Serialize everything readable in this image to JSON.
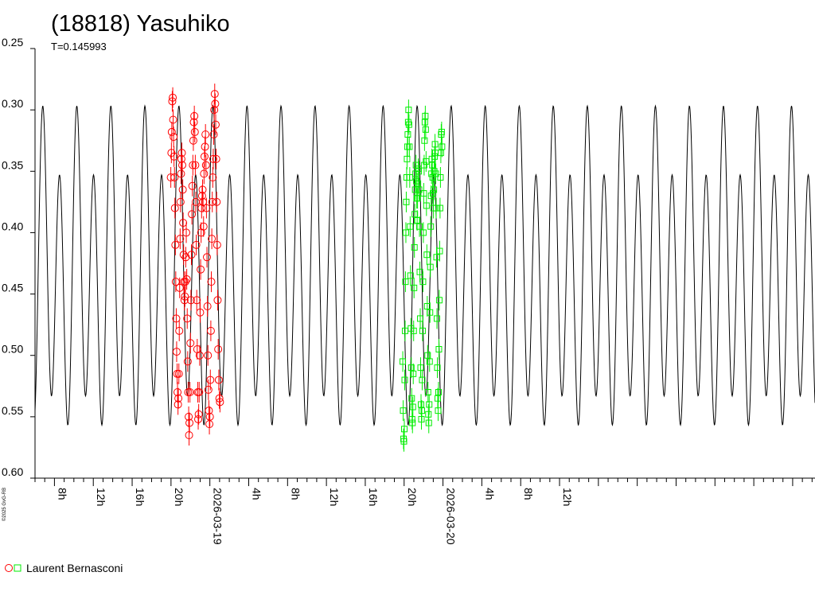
{
  "chart_data": {
    "type": "scatter",
    "title": "(18818) Yasuhiko",
    "subtitle": "T=0.145993",
    "credit": "©2025 GvG-RB",
    "y_axis": {
      "reversed": true,
      "range": [
        0.25,
        0.6
      ],
      "ticks": [
        "0.25",
        "0.30",
        "0.35",
        "0.40",
        "0.45",
        "0.50",
        "0.55",
        "0.60"
      ]
    },
    "x_axis": {
      "unit": "hours",
      "range": [
        6.0,
        86.3
      ],
      "ticks": [
        {
          "h": 8,
          "label": "8h"
        },
        {
          "h": 12,
          "label": "12h"
        },
        {
          "h": 16,
          "label": "16h"
        },
        {
          "h": 20,
          "label": "20h"
        },
        {
          "h": 24,
          "label": "2026-03-19"
        },
        {
          "h": 28,
          "label": "4h"
        },
        {
          "h": 32,
          "label": "8h"
        },
        {
          "h": 36,
          "label": "12h"
        },
        {
          "h": 40,
          "label": "16h"
        },
        {
          "h": 44,
          "label": "20h"
        },
        {
          "h": 48,
          "label": "2026-03-20"
        },
        {
          "h": 52,
          "label": "4h"
        },
        {
          "h": 56,
          "label": "8h"
        },
        {
          "h": 60,
          "label": "12h"
        }
      ]
    },
    "model_curve": {
      "period_days": 0.145993,
      "period_hours": 3.50383,
      "mean": 0.4345,
      "harmonics": [
        {
          "n": 1,
          "a": -0.0305,
          "phi": 0.0
        },
        {
          "n": 2,
          "a": -0.1095,
          "phi": 0.8
        }
      ],
      "color": "#000000"
    },
    "series": [
      {
        "name": "Laurent Bernasconi",
        "session": 1,
        "color": "#ff0000",
        "marker": "circle",
        "points": [
          [
            19.98,
            0.355
          ],
          [
            20.04,
            0.335
          ],
          [
            20.08,
            0.318
          ],
          [
            20.13,
            0.293
          ],
          [
            20.18,
            0.29
          ],
          [
            20.22,
            0.308
          ],
          [
            20.27,
            0.322
          ],
          [
            20.31,
            0.338
          ],
          [
            20.36,
            0.355
          ],
          [
            20.4,
            0.38
          ],
          [
            20.45,
            0.41
          ],
          [
            20.49,
            0.44
          ],
          [
            20.54,
            0.47
          ],
          [
            20.58,
            0.497
          ],
          [
            20.63,
            0.515
          ],
          [
            20.67,
            0.53
          ],
          [
            20.72,
            0.54
          ],
          [
            20.76,
            0.535
          ],
          [
            20.81,
            0.515
          ],
          [
            20.85,
            0.48
          ],
          [
            20.89,
            0.445
          ],
          [
            20.94,
            0.405
          ],
          [
            20.98,
            0.375
          ],
          [
            21.03,
            0.352
          ],
          [
            21.07,
            0.34
          ],
          [
            21.12,
            0.335
          ],
          [
            21.16,
            0.345
          ],
          [
            21.21,
            0.365
          ],
          [
            21.25,
            0.392
          ],
          [
            21.3,
            0.418
          ],
          [
            21.34,
            0.44
          ],
          [
            21.39,
            0.455
          ],
          [
            21.43,
            0.452
          ],
          [
            21.48,
            0.44
          ],
          [
            21.52,
            0.42
          ],
          [
            21.57,
            0.4
          ],
          [
            21.62,
            0.438
          ],
          [
            21.67,
            0.47
          ],
          [
            21.72,
            0.505
          ],
          [
            21.77,
            0.53
          ],
          [
            21.82,
            0.55
          ],
          [
            21.86,
            0.565
          ],
          [
            21.9,
            0.555
          ],
          [
            21.95,
            0.53
          ],
          [
            22.0,
            0.49
          ],
          [
            22.05,
            0.455
          ],
          [
            22.1,
            0.418
          ],
          [
            22.15,
            0.385
          ],
          [
            22.2,
            0.362
          ],
          [
            22.25,
            0.345
          ],
          [
            22.3,
            0.325
          ],
          [
            22.35,
            0.31
          ],
          [
            22.4,
            0.305
          ],
          [
            22.45,
            0.318
          ],
          [
            22.5,
            0.345
          ],
          [
            22.55,
            0.375
          ],
          [
            22.6,
            0.41
          ],
          [
            22.65,
            0.455
          ],
          [
            22.7,
            0.495
          ],
          [
            22.75,
            0.53
          ],
          [
            22.8,
            0.552
          ],
          [
            22.85,
            0.548
          ],
          [
            22.9,
            0.53
          ],
          [
            22.95,
            0.5
          ],
          [
            23.0,
            0.465
          ],
          [
            23.05,
            0.43
          ],
          [
            23.1,
            0.4
          ],
          [
            23.15,
            0.38
          ],
          [
            23.2,
            0.37
          ],
          [
            23.25,
            0.365
          ],
          [
            23.3,
            0.375
          ],
          [
            23.35,
            0.395
          ],
          [
            23.4,
            0.352
          ],
          [
            23.45,
            0.338
          ],
          [
            23.5,
            0.33
          ],
          [
            23.55,
            0.32
          ],
          [
            23.6,
            0.345
          ],
          [
            23.65,
            0.38
          ],
          [
            23.7,
            0.42
          ],
          [
            23.75,
            0.46
          ],
          [
            23.8,
            0.5
          ],
          [
            23.85,
            0.528
          ],
          [
            23.9,
            0.545
          ],
          [
            23.95,
            0.556
          ],
          [
            24.0,
            0.55
          ],
          [
            24.05,
            0.52
          ],
          [
            24.1,
            0.48
          ],
          [
            24.15,
            0.44
          ],
          [
            24.2,
            0.405
          ],
          [
            24.25,
            0.375
          ],
          [
            24.3,
            0.355
          ],
          [
            24.35,
            0.34
          ],
          [
            24.4,
            0.32
          ],
          [
            24.45,
            0.3
          ],
          [
            24.5,
            0.287
          ],
          [
            24.55,
            0.295
          ],
          [
            24.6,
            0.312
          ],
          [
            24.65,
            0.34
          ],
          [
            24.7,
            0.375
          ],
          [
            24.75,
            0.41
          ],
          [
            24.8,
            0.455
          ],
          [
            24.86,
            0.495
          ],
          [
            24.92,
            0.52
          ],
          [
            24.98,
            0.535
          ],
          [
            25.04,
            0.538
          ]
        ]
      },
      {
        "name": "Laurent Bernasconi",
        "session": 2,
        "color": "#00ee00",
        "marker": "square",
        "points": [
          [
            43.86,
            0.505
          ],
          [
            43.9,
            0.545
          ],
          [
            43.94,
            0.568
          ],
          [
            43.98,
            0.57
          ],
          [
            44.02,
            0.56
          ],
          [
            44.06,
            0.52
          ],
          [
            44.1,
            0.48
          ],
          [
            44.14,
            0.44
          ],
          [
            44.18,
            0.4
          ],
          [
            44.22,
            0.375
          ],
          [
            44.26,
            0.355
          ],
          [
            44.3,
            0.34
          ],
          [
            44.34,
            0.33
          ],
          [
            44.38,
            0.32
          ],
          [
            44.42,
            0.31
          ],
          [
            44.46,
            0.3
          ],
          [
            44.5,
            0.312
          ],
          [
            44.54,
            0.33
          ],
          [
            44.58,
            0.355
          ],
          [
            44.62,
            0.395
          ],
          [
            44.66,
            0.435
          ],
          [
            44.7,
            0.478
          ],
          [
            44.74,
            0.51
          ],
          [
            44.78,
            0.535
          ],
          [
            44.82,
            0.552
          ],
          [
            44.86,
            0.555
          ],
          [
            44.9,
            0.542
          ],
          [
            44.94,
            0.515
          ],
          [
            44.98,
            0.48
          ],
          [
            45.02,
            0.445
          ],
          [
            45.06,
            0.412
          ],
          [
            45.1,
            0.385
          ],
          [
            45.14,
            0.365
          ],
          [
            45.18,
            0.352
          ],
          [
            45.22,
            0.345
          ],
          [
            45.26,
            0.358
          ],
          [
            45.3,
            0.372
          ],
          [
            45.34,
            0.39
          ],
          [
            45.38,
            0.372
          ],
          [
            45.42,
            0.36
          ],
          [
            45.46,
            0.348
          ],
          [
            45.5,
            0.35
          ],
          [
            45.54,
            0.365
          ],
          [
            45.58,
            0.395
          ],
          [
            45.62,
            0.432
          ],
          [
            45.66,
            0.47
          ],
          [
            45.7,
            0.51
          ],
          [
            45.74,
            0.54
          ],
          [
            45.78,
            0.552
          ],
          [
            45.82,
            0.545
          ],
          [
            45.86,
            0.52
          ],
          [
            45.9,
            0.48
          ],
          [
            45.94,
            0.44
          ],
          [
            45.98,
            0.4
          ],
          [
            46.02,
            0.368
          ],
          [
            46.06,
            0.345
          ],
          [
            46.1,
            0.325
          ],
          [
            46.14,
            0.31
          ],
          [
            46.18,
            0.305
          ],
          [
            46.22,
            0.316
          ],
          [
            46.26,
            0.342
          ],
          [
            46.3,
            0.378
          ],
          [
            46.34,
            0.418
          ],
          [
            46.38,
            0.46
          ],
          [
            46.42,
            0.5
          ],
          [
            46.46,
            0.53
          ],
          [
            46.5,
            0.548
          ],
          [
            46.54,
            0.555
          ],
          [
            46.58,
            0.54
          ],
          [
            46.62,
            0.505
          ],
          [
            46.66,
            0.465
          ],
          [
            46.7,
            0.428
          ],
          [
            46.74,
            0.395
          ],
          [
            46.78,
            0.37
          ],
          [
            46.82,
            0.352
          ],
          [
            46.86,
            0.34
          ],
          [
            46.9,
            0.345
          ],
          [
            46.94,
            0.355
          ],
          [
            46.98,
            0.368
          ],
          [
            47.02,
            0.38
          ],
          [
            47.06,
            0.365
          ],
          [
            47.1,
            0.35
          ],
          [
            47.14,
            0.338
          ],
          [
            47.18,
            0.328
          ],
          [
            47.22,
            0.335
          ],
          [
            47.26,
            0.352
          ],
          [
            47.3,
            0.38
          ],
          [
            47.34,
            0.42
          ],
          [
            47.38,
            0.47
          ],
          [
            47.42,
            0.51
          ],
          [
            47.46,
            0.535
          ],
          [
            47.5,
            0.545
          ],
          [
            47.54,
            0.53
          ],
          [
            47.58,
            0.495
          ],
          [
            47.62,
            0.455
          ],
          [
            47.66,
            0.415
          ],
          [
            47.7,
            0.38
          ],
          [
            47.74,
            0.355
          ],
          [
            47.78,
            0.335
          ],
          [
            47.82,
            0.32
          ],
          [
            47.86,
            0.318
          ],
          [
            47.9,
            0.33
          ]
        ]
      }
    ],
    "legend": {
      "label": "Laurent Bernasconi",
      "placement": "bottom-left"
    },
    "grid": false
  }
}
